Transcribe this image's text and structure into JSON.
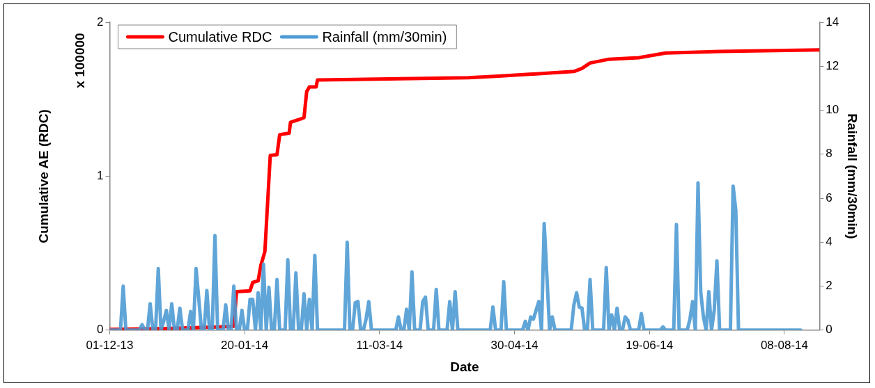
{
  "chart_data": {
    "type": "line",
    "xlabel": "Date",
    "ylabel": "Cumulative AE (RDC)",
    "y2label": "Rainfall (mm/30min)",
    "annotations": [
      "x 100000"
    ],
    "legend": "top left",
    "marker": "none",
    "xlim": [
      "2013-12-01",
      "2014-08-21"
    ],
    "xticks": [
      {
        "value": "2013-12-01",
        "label": "01-12-13"
      },
      {
        "value": "2014-01-20",
        "label": "20-01-14"
      },
      {
        "value": "2014-03-11",
        "label": "11-03-14"
      },
      {
        "value": "2014-04-30",
        "label": "30-04-14"
      },
      {
        "value": "2014-06-19",
        "label": "19-06-14"
      },
      {
        "value": "2014-08-08",
        "label": "08-08-14"
      }
    ],
    "ylim": [
      0,
      2
    ],
    "yticks": [
      0,
      1,
      2
    ],
    "y2lim": [
      0,
      14
    ],
    "y2ticks": [
      0,
      2,
      4,
      6,
      8,
      10,
      12,
      14
    ],
    "series": [
      {
        "name": "Cumulative RDC",
        "color": "#ff0000",
        "x": [
          "2013-12-01",
          "2013-12-21",
          "2014-01-10",
          "2014-01-16",
          "2014-01-17",
          "2014-01-22",
          "2014-01-23",
          "2014-01-25",
          "2014-01-26",
          "2014-01-27T12:00",
          "2014-01-29T12:00",
          "2014-02-01",
          "2014-02-02",
          "2014-02-05T12:00",
          "2014-02-06",
          "2014-02-09T12:00",
          "2014-02-11",
          "2014-02-12",
          "2014-02-13",
          "2014-02-15T12:00",
          "2014-02-16",
          "2014-04-13",
          "2014-04-24",
          "2014-05-22",
          "2014-05-25",
          "2014-05-28",
          "2014-06-04",
          "2014-06-15",
          "2014-06-25",
          "2014-07-15",
          "2014-08-21"
        ],
        "values": [
          0.005,
          0.01,
          0.02,
          0.025,
          0.25,
          0.255,
          0.31,
          0.32,
          0.42,
          0.51,
          1.135,
          1.14,
          1.27,
          1.28,
          1.35,
          1.37,
          1.38,
          1.55,
          1.58,
          1.58,
          1.625,
          1.64,
          1.65,
          1.68,
          1.7,
          1.735,
          1.76,
          1.77,
          1.8,
          1.81,
          1.82
        ]
      },
      {
        "name": "Rainfall (mm/30min)",
        "color": "#4f9bd4",
        "axis": "y2",
        "x": [
          "2013-12-01",
          "2013-12-05",
          "2013-12-06",
          "2013-12-07",
          "2013-12-12",
          "2013-12-13",
          "2013-12-14",
          "2013-12-15",
          "2013-12-16",
          "2013-12-17",
          "2013-12-18",
          "2013-12-19",
          "2013-12-20",
          "2013-12-21",
          "2013-12-22",
          "2013-12-23",
          "2013-12-24",
          "2013-12-25",
          "2013-12-26",
          "2013-12-27",
          "2013-12-28",
          "2013-12-30",
          "2013-12-31",
          "2014-01-01",
          "2014-01-02",
          "2014-01-03",
          "2014-01-04",
          "2014-01-05",
          "2014-01-06",
          "2014-01-07",
          "2014-01-08",
          "2014-01-09",
          "2014-01-10",
          "2014-01-12",
          "2014-01-13",
          "2014-01-14",
          "2014-01-15",
          "2014-01-16",
          "2014-01-17",
          "2014-01-18",
          "2014-01-19",
          "2014-01-20",
          "2014-01-21",
          "2014-01-22",
          "2014-01-23",
          "2014-01-24",
          "2014-01-25",
          "2014-01-26",
          "2014-01-27",
          "2014-01-28",
          "2014-01-29",
          "2014-01-30",
          "2014-01-31",
          "2014-02-01",
          "2014-02-02",
          "2014-02-04",
          "2014-02-05",
          "2014-02-06",
          "2014-02-07",
          "2014-02-08",
          "2014-02-09",
          "2014-02-10",
          "2014-02-11",
          "2014-02-12",
          "2014-02-13",
          "2014-02-14",
          "2014-02-15",
          "2014-02-16",
          "2014-02-26",
          "2014-02-27",
          "2014-02-28",
          "2014-03-01",
          "2014-03-02",
          "2014-03-03",
          "2014-03-04",
          "2014-03-05",
          "2014-03-06",
          "2014-03-07",
          "2014-03-08",
          "2014-03-17",
          "2014-03-18",
          "2014-03-19",
          "2014-03-20",
          "2014-03-21",
          "2014-03-22",
          "2014-03-23",
          "2014-03-24",
          "2014-03-26",
          "2014-03-27",
          "2014-03-28",
          "2014-03-29",
          "2014-03-31",
          "2014-04-01",
          "2014-04-02",
          "2014-04-05",
          "2014-04-06",
          "2014-04-07",
          "2014-04-08",
          "2014-04-09",
          "2014-04-21",
          "2014-04-22",
          "2014-04-23",
          "2014-04-25",
          "2014-04-26",
          "2014-04-27",
          "2014-05-03",
          "2014-05-04",
          "2014-05-05",
          "2014-05-06",
          "2014-05-07",
          "2014-05-08",
          "2014-05-09",
          "2014-05-10",
          "2014-05-11",
          "2014-05-12",
          "2014-05-13",
          "2014-05-14",
          "2014-05-15",
          "2014-05-21",
          "2014-05-22",
          "2014-05-23",
          "2014-05-24",
          "2014-05-25",
          "2014-05-26",
          "2014-05-27",
          "2014-05-28",
          "2014-05-29",
          "2014-06-02",
          "2014-06-03",
          "2014-06-04",
          "2014-06-05",
          "2014-06-06",
          "2014-06-07",
          "2014-06-08",
          "2014-06-09",
          "2014-06-10",
          "2014-06-11",
          "2014-06-12",
          "2014-06-15",
          "2014-06-16",
          "2014-06-17",
          "2014-06-23",
          "2014-06-24",
          "2014-06-25",
          "2014-06-28",
          "2014-06-29",
          "2014-06-30",
          "2014-07-03",
          "2014-07-04",
          "2014-07-05",
          "2014-07-06",
          "2014-07-07",
          "2014-07-08",
          "2014-07-09",
          "2014-07-10",
          "2014-07-11",
          "2014-07-12",
          "2014-07-13",
          "2014-07-14",
          "2014-07-15",
          "2014-07-19",
          "2014-07-20",
          "2014-07-21",
          "2014-07-22",
          "2014-08-14"
        ],
        "values": [
          0,
          0,
          2.0,
          0,
          0,
          0.25,
          0,
          0,
          1.2,
          0,
          0,
          2.8,
          0,
          0.4,
          0.9,
          0,
          1.2,
          0,
          0,
          1.0,
          0,
          0,
          0.85,
          0,
          2.8,
          1.45,
          0,
          0,
          1.8,
          0,
          0,
          4.3,
          0,
          0,
          1.15,
          0,
          0,
          2.0,
          0,
          0,
          0.9,
          0,
          0,
          1.4,
          1.4,
          0,
          1.7,
          0,
          3.0,
          0,
          1.95,
          0,
          0,
          2.3,
          0,
          0,
          3.2,
          0,
          0,
          2.6,
          0,
          0,
          1.65,
          0,
          1.4,
          0,
          3.4,
          0,
          0,
          4.0,
          0,
          0,
          1.25,
          1.3,
          0,
          0,
          0.5,
          1.3,
          0,
          0,
          0.6,
          0,
          0,
          0.95,
          0,
          2.65,
          0,
          0,
          1.3,
          1.5,
          0,
          0,
          1.85,
          0,
          0,
          1.3,
          0,
          1.75,
          0,
          0,
          1.05,
          0,
          0,
          2.2,
          0,
          0,
          0.4,
          0,
          0.6,
          0.5,
          0.9,
          1.3,
          0,
          4.85,
          2.45,
          0,
          0.6,
          0,
          0,
          1.15,
          1.7,
          1.05,
          1.0,
          0,
          0,
          2.3,
          0,
          0,
          2.85,
          0,
          0.7,
          0,
          1.0,
          0,
          0,
          0.6,
          0.45,
          0,
          0,
          0.75,
          0,
          0,
          0.15,
          0,
          0,
          4.8,
          0,
          0,
          0.5,
          1.3,
          0,
          6.7,
          1.75,
          0.6,
          0,
          1.75,
          0,
          0.9,
          3.15,
          0,
          0,
          6.55,
          5.45,
          0,
          0
        ]
      }
    ]
  }
}
